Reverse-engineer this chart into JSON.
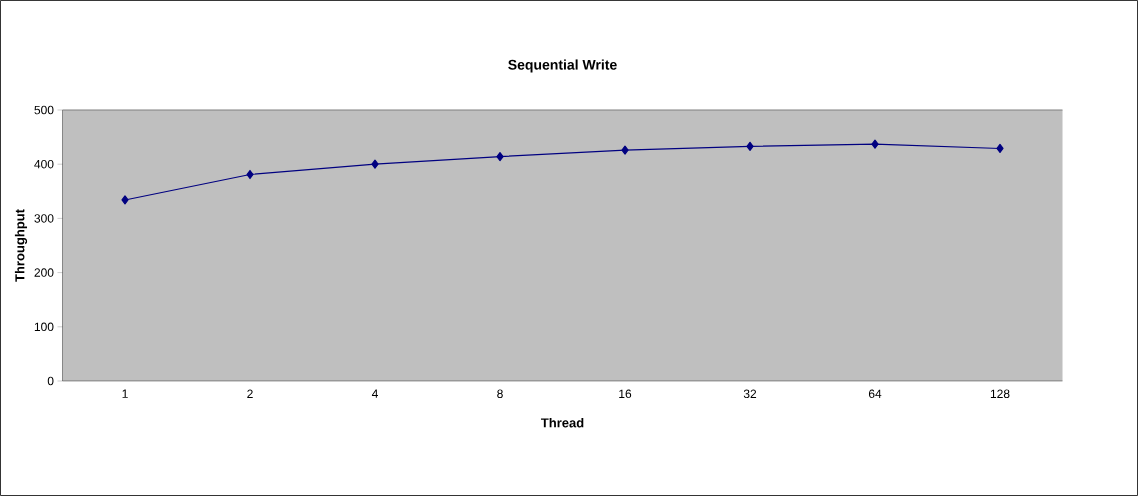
{
  "chart_data": {
    "type": "line",
    "title": "Sequential Write",
    "xlabel": "Thread",
    "ylabel": "Throughput",
    "categories": [
      "1",
      "2",
      "4",
      "8",
      "16",
      "32",
      "64",
      "128"
    ],
    "series": [
      {
        "color": "#000080",
        "values": [
          334,
          381,
          400,
          414,
          426,
          433,
          437,
          429
        ]
      }
    ],
    "ylim": [
      0,
      500
    ],
    "yticks": [
      0,
      100,
      200,
      300,
      400,
      500
    ],
    "marker": "diamond",
    "line_style": "solid",
    "grid": false
  }
}
